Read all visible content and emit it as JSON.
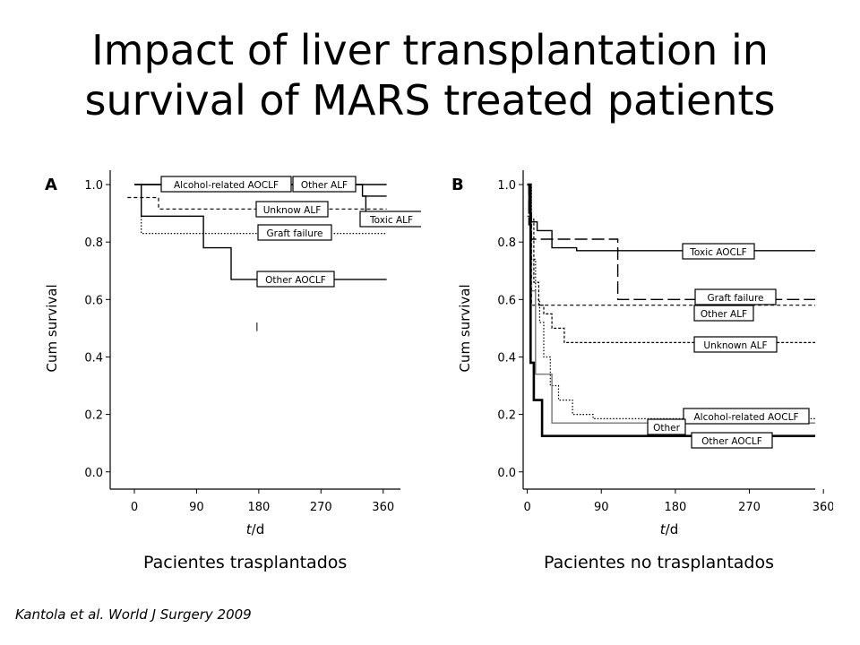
{
  "title": {
    "line1": "Impact of liver transplantation in",
    "line2": "survival of MARS treated patients"
  },
  "chart_data": [
    {
      "panel": "A",
      "type": "line",
      "xlabel_italic": "t",
      "xlabel_unit": "/d",
      "ylabel": "Cum survival",
      "xlim": [
        -35,
        385
      ],
      "ylim": [
        -0.06,
        1.05
      ],
      "xticks": [
        0,
        90,
        180,
        270,
        360
      ],
      "yticks": [
        0.0,
        0.2,
        0.4,
        0.6,
        0.8,
        1.0
      ],
      "grid": false,
      "series": [
        {
          "name": "Alcohol-related AOCLF",
          "style": "solid",
          "steps": [
            [
              0,
              1.0
            ],
            [
              330,
              1.0
            ],
            [
              330,
              0.96
            ],
            [
              365,
              0.96
            ]
          ]
        },
        {
          "name": "Other ALF",
          "style": "solid",
          "steps": [
            [
              0,
              1.0
            ],
            [
              365,
              1.0
            ]
          ]
        },
        {
          "name": "Unknow ALF",
          "style": "dashed",
          "steps": [
            [
              -10,
              0.955
            ],
            [
              35,
              0.955
            ],
            [
              35,
              0.915
            ],
            [
              365,
              0.915
            ]
          ]
        },
        {
          "name": "Toxic ALF",
          "style": "solid",
          "steps": [
            [
              330,
              0.96
            ],
            [
              335,
              0.96
            ],
            [
              335,
              0.87
            ],
            [
              365,
              0.87
            ]
          ]
        },
        {
          "name": "Graft failure",
          "style": "dotted",
          "steps": [
            [
              10,
              1.0
            ],
            [
              10,
              0.83
            ],
            [
              365,
              0.83
            ]
          ]
        },
        {
          "name": "Other AOCLF",
          "style": "solid",
          "steps": [
            [
              10,
              1.0
            ],
            [
              10,
              0.89
            ],
            [
              100,
              0.89
            ],
            [
              100,
              0.78
            ],
            [
              140,
              0.78
            ],
            [
              140,
              0.67
            ],
            [
              365,
              0.67
            ]
          ]
        }
      ],
      "annotations": [
        "Alcohol-related AOCLF",
        "Other ALF",
        "Unknow ALF",
        "Toxic ALF",
        "Graft failure",
        "Other AOCLF"
      ]
    },
    {
      "panel": "B",
      "type": "line",
      "xlabel_italic": "t",
      "xlabel_unit": "/d",
      "ylabel": "Cum survival",
      "xlim": [
        -5,
        350
      ],
      "ylim": [
        -0.06,
        1.05
      ],
      "xticks": [
        0,
        90,
        180,
        270,
        360
      ],
      "yticks": [
        0.0,
        0.2,
        0.4,
        0.6,
        0.8,
        1.0
      ],
      "grid": false,
      "series": [
        {
          "name": "Toxic AOCLF",
          "style": "solid",
          "steps": [
            [
              0,
              1.0
            ],
            [
              2,
              1.0
            ],
            [
              2,
              0.9
            ],
            [
              5,
              0.9
            ],
            [
              5,
              0.87
            ],
            [
              12,
              0.87
            ],
            [
              12,
              0.84
            ],
            [
              30,
              0.84
            ],
            [
              30,
              0.78
            ],
            [
              60,
              0.78
            ],
            [
              60,
              0.77
            ],
            [
              350,
              0.77
            ]
          ]
        },
        {
          "name": "Graft failure",
          "style": "longdash",
          "steps": [
            [
              0,
              1.0
            ],
            [
              2,
              1.0
            ],
            [
              2,
              0.86
            ],
            [
              5,
              0.86
            ],
            [
              5,
              0.81
            ],
            [
              110,
              0.81
            ],
            [
              110,
              0.6
            ],
            [
              350,
              0.6
            ]
          ]
        },
        {
          "name": "Other ALF",
          "style": "dashed",
          "steps": [
            [
              0,
              0.89
            ],
            [
              5,
              0.89
            ],
            [
              5,
              0.58
            ],
            [
              350,
              0.58
            ]
          ]
        },
        {
          "name": "Unknown ALF",
          "style": "shortdash",
          "steps": [
            [
              0,
              1.0
            ],
            [
              3,
              1.0
            ],
            [
              3,
              0.88
            ],
            [
              8,
              0.88
            ],
            [
              8,
              0.66
            ],
            [
              14,
              0.66
            ],
            [
              14,
              0.58
            ],
            [
              20,
              0.58
            ],
            [
              20,
              0.55
            ],
            [
              30,
              0.55
            ],
            [
              30,
              0.5
            ],
            [
              45,
              0.5
            ],
            [
              45,
              0.45
            ],
            [
              350,
              0.45
            ]
          ]
        },
        {
          "name": "Alcohol-related AOCLF",
          "style": "dotted",
          "steps": [
            [
              0,
              1.0
            ],
            [
              5,
              1.0
            ],
            [
              5,
              0.74
            ],
            [
              10,
              0.74
            ],
            [
              10,
              0.6
            ],
            [
              15,
              0.6
            ],
            [
              15,
              0.52
            ],
            [
              20,
              0.52
            ],
            [
              20,
              0.4
            ],
            [
              28,
              0.4
            ],
            [
              28,
              0.3
            ],
            [
              38,
              0.3
            ],
            [
              38,
              0.25
            ],
            [
              55,
              0.25
            ],
            [
              55,
              0.2
            ],
            [
              80,
              0.2
            ],
            [
              80,
              0.185
            ],
            [
              350,
              0.185
            ]
          ]
        },
        {
          "name": "Other",
          "style": "gray",
          "steps": [
            [
              0,
              1.0
            ],
            [
              4,
              1.0
            ],
            [
              4,
              0.63
            ],
            [
              10,
              0.63
            ],
            [
              10,
              0.34
            ],
            [
              30,
              0.34
            ],
            [
              30,
              0.17
            ],
            [
              350,
              0.17
            ]
          ]
        },
        {
          "name": "Other AOCLF",
          "style": "thick",
          "steps": [
            [
              0,
              1.0
            ],
            [
              4,
              1.0
            ],
            [
              4,
              0.38
            ],
            [
              8,
              0.38
            ],
            [
              8,
              0.25
            ],
            [
              18,
              0.25
            ],
            [
              18,
              0.125
            ],
            [
              350,
              0.125
            ]
          ]
        }
      ],
      "annotations": [
        "Toxic AOCLF",
        "Graft failure",
        "Other ALF",
        "Unknown ALF",
        "Alcohol-related AOCLF",
        "Other",
        "Other AOCLF"
      ]
    }
  ],
  "captions": {
    "left": "Pacientes trasplantados",
    "right": "Pacientes no trasplantados"
  },
  "citation": "Kantola et al. World J Surgery 2009"
}
